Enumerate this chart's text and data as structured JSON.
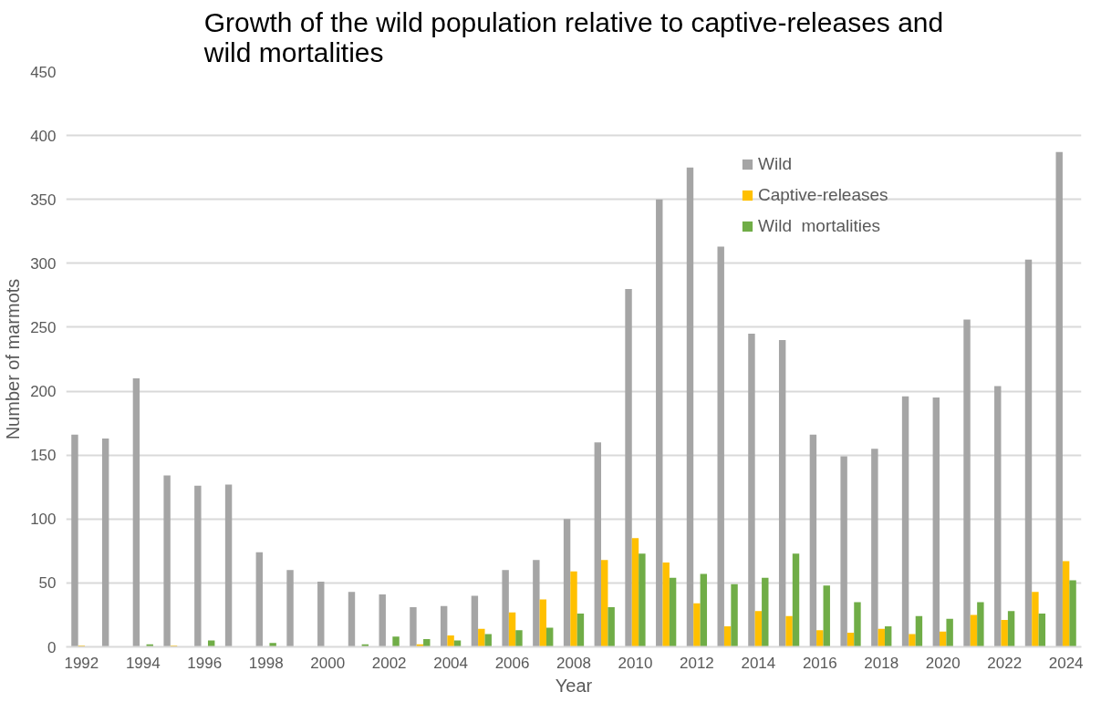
{
  "chart_data": {
    "type": "bar",
    "title": "Growth of the wild population relative to captive-releases and wild mortalities",
    "xlabel": "Year",
    "ylabel": "Number of marmots",
    "categories": [
      "1992",
      null,
      "1994",
      null,
      "1996",
      null,
      "1998",
      null,
      "2000",
      null,
      "2002",
      null,
      "2004",
      null,
      "2006",
      null,
      "2008",
      null,
      "2010",
      null,
      "2012",
      null,
      "2014",
      null,
      "2016",
      null,
      "2018",
      null,
      "2020",
      null,
      "2022",
      null,
      "2024"
    ],
    "series": [
      {
        "name": "Wild",
        "color": "#a5a5a5",
        "values": [
          166,
          163,
          210,
          134,
          126,
          127,
          74,
          60,
          51,
          43,
          41,
          31,
          32,
          40,
          60,
          68,
          100,
          160,
          280,
          350,
          375,
          313,
          245,
          240,
          166,
          149,
          155,
          196,
          195,
          256,
          204,
          303,
          387
        ]
      },
      {
        "name": "Captive-releases",
        "color": "#ffc000",
        "values": [
          1,
          0,
          0,
          1,
          0,
          0,
          0,
          0,
          0,
          0,
          0,
          2,
          9,
          14,
          27,
          37,
          59,
          68,
          85,
          66,
          34,
          16,
          28,
          24,
          13,
          11,
          14,
          10,
          12,
          25,
          21,
          43,
          67
        ]
      },
      {
        "name": "Wild  mortalities",
        "color": "#70ad47",
        "values": [
          0,
          0,
          2,
          0,
          5,
          0,
          3,
          0,
          0,
          2,
          8,
          6,
          5,
          10,
          13,
          15,
          26,
          31,
          73,
          54,
          57,
          49,
          54,
          73,
          48,
          35,
          16,
          24,
          22,
          35,
          28,
          26,
          52
        ]
      }
    ],
    "ylim": [
      0,
      450
    ],
    "yticks": [
      0,
      50,
      100,
      150,
      200,
      250,
      300,
      350,
      400,
      450
    ],
    "grid": "y",
    "legend": "top right"
  }
}
